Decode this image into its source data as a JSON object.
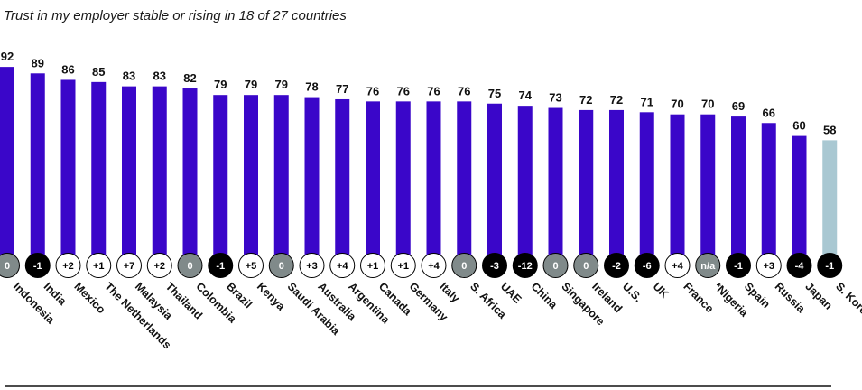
{
  "chart_data": {
    "type": "bar",
    "title": "Trust in my employer stable or rising in 18 of 27 countries",
    "categories": [
      "Indonesia",
      "India",
      "Mexico",
      "The Netherlands",
      "Malaysia",
      "Thailand",
      "Colombia",
      "Brazil",
      "Kenya",
      "Saudi Arabia",
      "Australia",
      "Argentina",
      "Canada",
      "Germany",
      "Italy",
      "S. Africa",
      "UAE",
      "China",
      "Singapore",
      "Ireland",
      "U.S.",
      "UK",
      "France",
      "*Nigeria",
      "Spain",
      "Russia",
      "Japan",
      "S. Korea"
    ],
    "values": [
      92,
      89,
      86,
      85,
      83,
      83,
      82,
      79,
      79,
      79,
      78,
      77,
      76,
      76,
      76,
      76,
      75,
      74,
      73,
      72,
      72,
      71,
      70,
      70,
      69,
      66,
      60,
      58
    ],
    "changes": [
      "0",
      "-1",
      "+2",
      "+1",
      "+7",
      "+2",
      "0",
      "-1",
      "+5",
      "0",
      "+3",
      "+4",
      "+1",
      "+1",
      "+4",
      "0",
      "-3",
      "-12",
      "0",
      "0",
      "-2",
      "-6",
      "+4",
      "n/a",
      "-1",
      "+3",
      "-4",
      "-1"
    ],
    "ylim": [
      0,
      100
    ],
    "grid": false,
    "colors": {
      "bar": "#3a06c9",
      "bar_highlight": "#a9c8d2",
      "change_positive": "#ffffff",
      "change_zero": "#808a8a",
      "change_negative": "#000000"
    }
  }
}
